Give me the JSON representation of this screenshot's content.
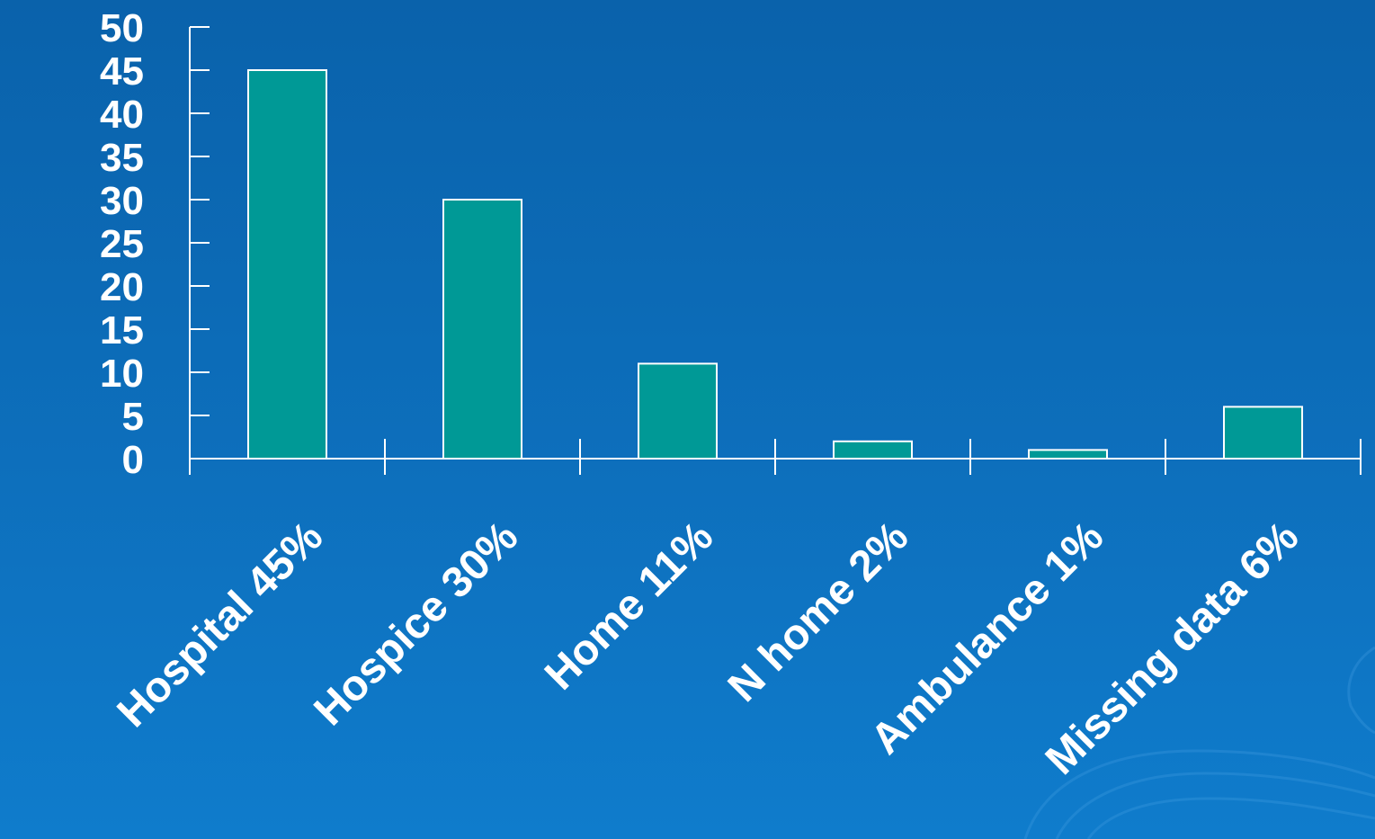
{
  "chart_data": {
    "type": "bar",
    "categories": [
      "Hospital 45%",
      "Hospice 30%",
      "Home 11%",
      "N home 2%",
      "Ambulance 1%",
      "Missing data 6%"
    ],
    "values": [
      45,
      30,
      11,
      2,
      1,
      6
    ],
    "y_ticks": [
      "0",
      "5",
      "10",
      "15",
      "20",
      "25",
      "30",
      "35",
      "40",
      "45",
      "50"
    ],
    "title": "",
    "xlabel": "",
    "ylabel": "",
    "ylim": [
      0,
      50
    ],
    "grid": false,
    "legend": "none",
    "colors": {
      "bar": "#009996",
      "bar_border": "#ffffff",
      "axis": "#ffffff",
      "text": "#ffffff",
      "background": "#0a66b0"
    }
  }
}
